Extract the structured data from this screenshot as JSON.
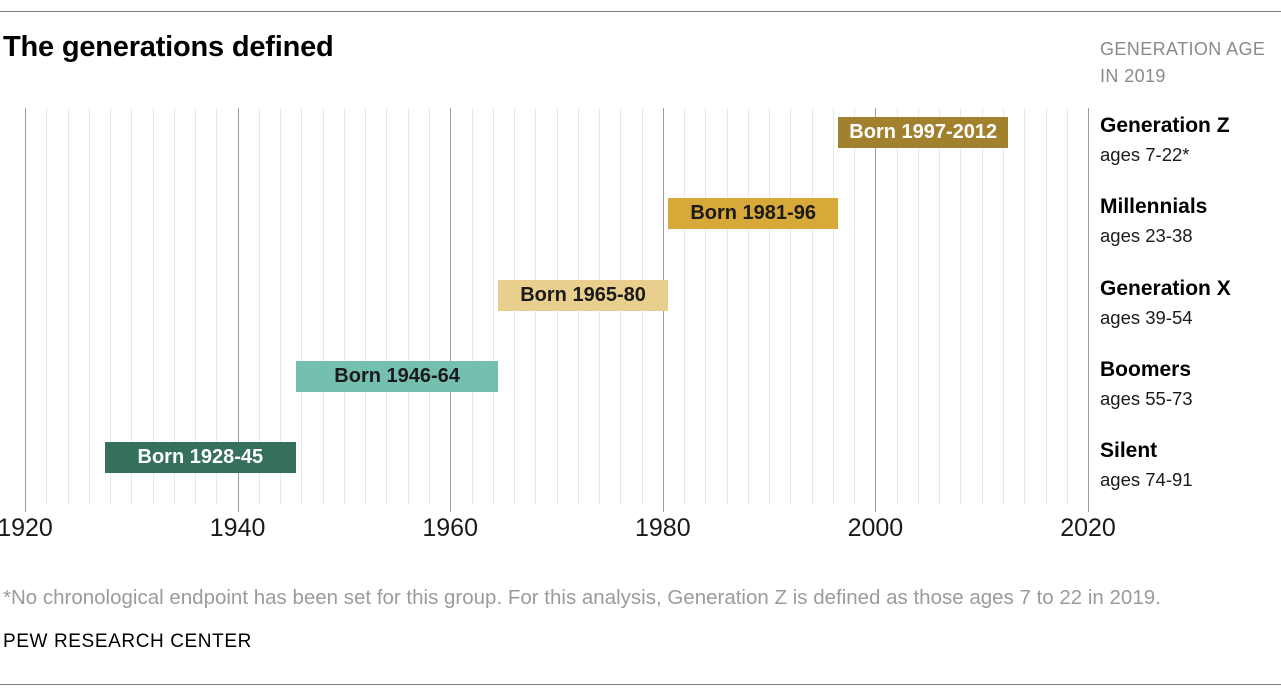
{
  "title": "The generations defined",
  "header_note": {
    "line1": "GENERATION AGE",
    "line2": "IN 2019"
  },
  "footnote": "*No chronological endpoint has been set for this group. For this analysis, Generation Z is defined as those ages 7 to 22 in 2019.",
  "source": "PEW RESEARCH CENTER",
  "chart_data": {
    "type": "bar",
    "subtype": "horizontal-timeline",
    "title": "The generations defined",
    "x_axis": {
      "min": 1920,
      "max": 2020,
      "major_tick_step": 20,
      "minor_grid_step": 2,
      "tick_labels": [
        "1920",
        "1940",
        "1960",
        "1980",
        "2000",
        "2020"
      ]
    },
    "grid": {
      "minor_color": "#e8e8e8",
      "major_color": "#9c9c9c",
      "on": true
    },
    "legend_position": "right",
    "series": [
      {
        "name": "Generation Z",
        "ages": "ages 7-22*",
        "born_start": 1997,
        "born_end": 2012,
        "bar_label": "Born 1997-2012",
        "color": "#a1812e",
        "label_color": "#ffffff"
      },
      {
        "name": "Millennials",
        "ages": "ages 23-38",
        "born_start": 1981,
        "born_end": 1996,
        "bar_label": "Born 1981-96",
        "color": "#d6a938",
        "label_color": "#1a1a1a"
      },
      {
        "name": "Generation X",
        "ages": "ages 39-54",
        "born_start": 1965,
        "born_end": 1980,
        "bar_label": "Born 1965-80",
        "color": "#e8cf8e",
        "label_color": "#1a1a1a"
      },
      {
        "name": "Boomers",
        "ages": "ages 55-73",
        "born_start": 1946,
        "born_end": 1964,
        "bar_label": "Born 1946-64",
        "color": "#74bfb0",
        "label_color": "#1a1a1a"
      },
      {
        "name": "Silent",
        "ages": "ages 74-91",
        "born_start": 1928,
        "born_end": 1945,
        "bar_label": "Born 1928-45",
        "color": "#35705e",
        "label_color": "#ffffff"
      }
    ]
  }
}
